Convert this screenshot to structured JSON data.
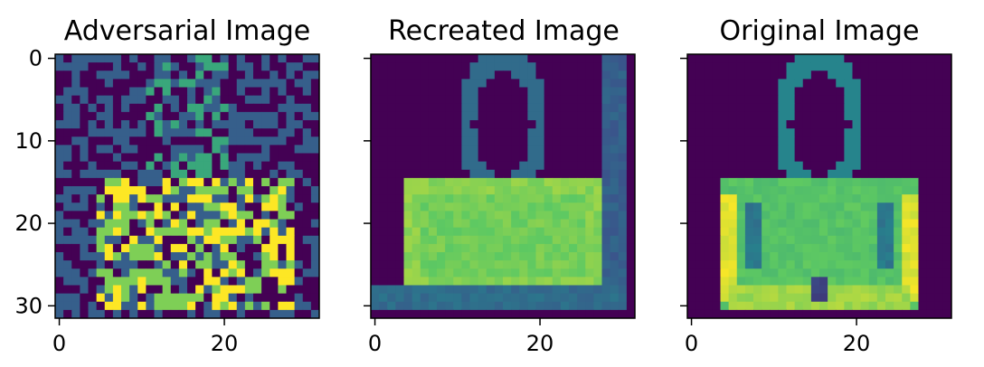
{
  "figure": {
    "colormap": "viridis",
    "colors": {
      "low": "#440154",
      "mid_low": "#3b528b",
      "mid": "#21918c",
      "mid_high": "#5ec962",
      "high": "#fde725",
      "axis": "#000000",
      "background": "#ffffff"
    }
  },
  "chart_data": [
    {
      "type": "heatmap",
      "title": "Adversarial Image",
      "xlabel": "",
      "ylabel": "",
      "grid": false,
      "image_size": [
        32,
        32
      ],
      "xlim": [
        -0.5,
        31.5
      ],
      "ylim": [
        31.5,
        -0.5
      ],
      "x_ticks": [
        0,
        20
      ],
      "y_ticks": [
        0,
        10,
        20,
        30
      ],
      "y_ticklabels_shown": true,
      "value_range": [
        0,
        1
      ],
      "content": "random noise of dark-purple and blue-grey pixels with scattered teal and green pixels; bright yellow/green noisy block in rows 15-30, columns 5-28",
      "regions": [
        {
          "rows": [
            0,
            31
          ],
          "cols": [
            0,
            31
          ],
          "pattern": "noise",
          "levels": [
            0.0,
            0.3
          ]
        },
        {
          "rows": [
            0,
            14
          ],
          "cols": [
            11,
            20
          ],
          "pattern": "noise",
          "levels": [
            0.0,
            0.3,
            0.6
          ]
        },
        {
          "rows": [
            15,
            30
          ],
          "cols": [
            5,
            28
          ],
          "pattern": "noise",
          "levels": [
            0.0,
            0.3,
            0.8,
            1.0
          ]
        }
      ]
    },
    {
      "type": "heatmap",
      "title": "Recreated Image",
      "xlabel": "",
      "ylabel": "",
      "grid": false,
      "image_size": [
        32,
        32
      ],
      "xlim": [
        -0.5,
        31.5
      ],
      "ylim": [
        31.5,
        -0.5
      ],
      "x_ticks": [
        0,
        20
      ],
      "y_ticks": [
        0,
        10,
        20,
        30
      ],
      "y_ticklabels_shown": false,
      "value_range": [
        0,
        1
      ],
      "content": "blurry handbag: curved handle rows 0-15 around column 16, green-yellow body rows 15-27 columns 4-27, vertical bar at columns 28-30, horizontal bar along rows 28-30",
      "regions": [
        {
          "shape": "ring",
          "center_col": 15.5,
          "center_row": 8,
          "radius_cols": 4.5,
          "radius_rows": 8,
          "rows": [
            0,
            15
          ],
          "level": 0.35
        },
        {
          "shape": "rect",
          "rows": [
            15,
            27
          ],
          "cols": [
            4,
            27
          ],
          "level": 0.82
        },
        {
          "shape": "rect",
          "rows": [
            17,
            26
          ],
          "cols": [
            6,
            25
          ],
          "level": 0.78
        },
        {
          "shape": "rect",
          "rows": [
            0,
            30
          ],
          "cols": [
            28,
            30
          ],
          "level": 0.3
        },
        {
          "shape": "rect",
          "rows": [
            28,
            30
          ],
          "cols": [
            0,
            30
          ],
          "level": 0.35
        }
      ]
    },
    {
      "type": "heatmap",
      "title": "Original Image",
      "xlabel": "",
      "ylabel": "",
      "grid": false,
      "image_size": [
        32,
        32
      ],
      "xlim": [
        -0.5,
        31.5
      ],
      "ylim": [
        31.5,
        -0.5
      ],
      "x_ticks": [
        0,
        20
      ],
      "y_ticks": [
        0,
        10,
        20,
        30
      ],
      "y_ticklabels_shown": false,
      "value_range": [
        0,
        1
      ],
      "content": "handbag: curved handle rows 0-15 around column 16, green body rows 15-30 columns 4-27 with yellow side edges and darker interior folds",
      "regions": [
        {
          "shape": "ring",
          "center_col": 15.5,
          "center_row": 8,
          "radius_cols": 4.5,
          "radius_rows": 8,
          "rows": [
            0,
            15
          ],
          "level": 0.45
        },
        {
          "shape": "rect",
          "rows": [
            15,
            30
          ],
          "cols": [
            4,
            27
          ],
          "level": 0.72
        },
        {
          "shape": "rect",
          "rows": [
            17,
            29
          ],
          "cols": [
            4,
            5
          ],
          "level": 0.95
        },
        {
          "shape": "rect",
          "rows": [
            17,
            29
          ],
          "cols": [
            26,
            27
          ],
          "level": 0.95
        },
        {
          "shape": "rect",
          "rows": [
            28,
            30
          ],
          "cols": [
            5,
            26
          ],
          "level": 0.85
        },
        {
          "shape": "rect",
          "rows": [
            18,
            25
          ],
          "cols": [
            7,
            8
          ],
          "level": 0.4
        },
        {
          "shape": "rect",
          "rows": [
            18,
            25
          ],
          "cols": [
            23,
            24
          ],
          "level": 0.4
        },
        {
          "shape": "rect",
          "rows": [
            27,
            29
          ],
          "cols": [
            15,
            16
          ],
          "level": 0.2
        }
      ]
    }
  ]
}
